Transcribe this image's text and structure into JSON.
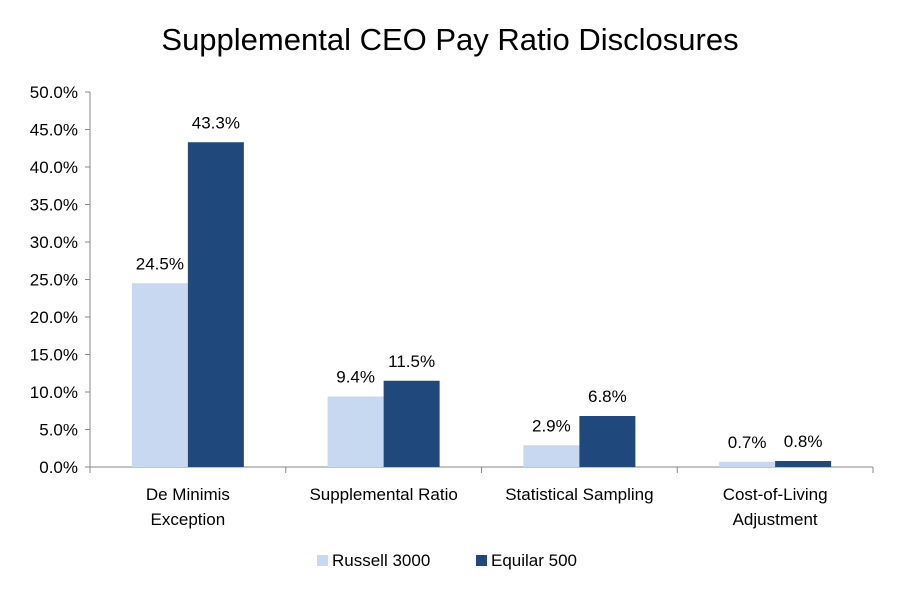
{
  "chart_data": {
    "type": "bar",
    "title": "Supplemental CEO Pay Ratio Disclosures",
    "xlabel": "",
    "ylabel": "",
    "ylim": [
      0,
      50
    ],
    "yticks": [
      "0.0%",
      "5.0%",
      "10.0%",
      "15.0%",
      "20.0%",
      "25.0%",
      "30.0%",
      "35.0%",
      "40.0%",
      "45.0%",
      "50.0%"
    ],
    "categories": [
      [
        "De Minimis",
        "Exception"
      ],
      [
        "Supplemental Ratio"
      ],
      [
        "Statistical Sampling"
      ],
      [
        "Cost-of-Living",
        "Adjustment"
      ]
    ],
    "series": [
      {
        "name": "Russell 3000",
        "color": "#c6d9f1",
        "values": [
          24.5,
          9.4,
          2.9,
          0.7
        ],
        "labels": [
          "24.5%",
          "9.4%",
          "2.9%",
          "0.7%"
        ]
      },
      {
        "name": "Equilar 500",
        "color": "#1f497d",
        "values": [
          43.3,
          11.5,
          6.8,
          0.8
        ],
        "labels": [
          "43.3%",
          "11.5%",
          "6.8%",
          "0.8%"
        ]
      }
    ],
    "legend": "bottom",
    "grid": false
  }
}
